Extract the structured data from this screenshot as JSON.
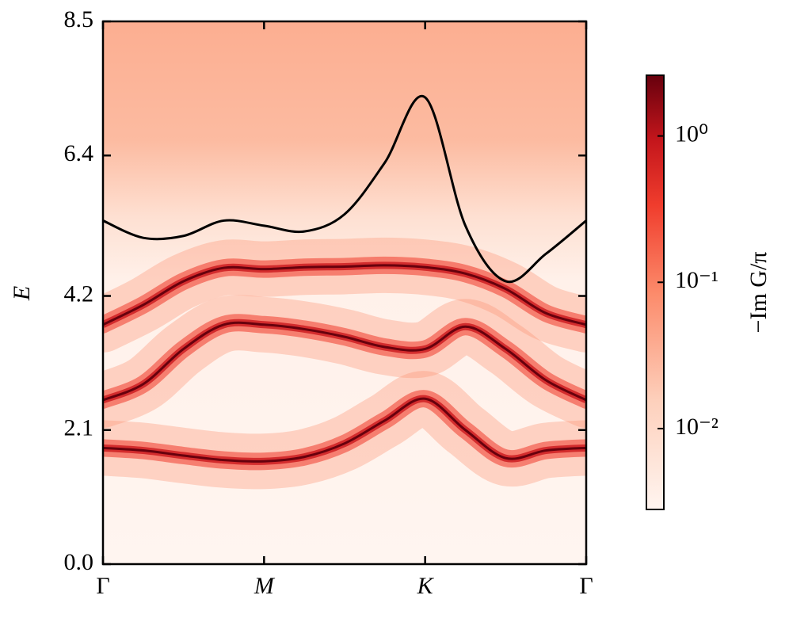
{
  "chart_data": {
    "type": "line",
    "y_label": "E",
    "x": [
      0,
      0.25,
      0.5,
      0.75,
      1,
      1.25,
      1.5,
      1.75,
      2,
      2.25,
      2.5,
      2.75,
      3
    ],
    "series": [
      {
        "color": "#67000d",
        "values": [
          1.82,
          1.78,
          1.7,
          1.63,
          1.61,
          1.68,
          1.89,
          2.25,
          2.59,
          2.1,
          1.66,
          1.78,
          1.82
        ]
      },
      {
        "color": "#67000d",
        "values": [
          2.57,
          2.82,
          3.37,
          3.75,
          3.75,
          3.68,
          3.56,
          3.4,
          3.37,
          3.72,
          3.37,
          2.88,
          2.57
        ]
      },
      {
        "color": "#67000d",
        "values": [
          3.75,
          4.06,
          4.43,
          4.64,
          4.62,
          4.65,
          4.66,
          4.68,
          4.65,
          4.55,
          4.31,
          3.93,
          3.75
        ]
      },
      {
        "color": "#000000",
        "values": [
          5.38,
          5.11,
          5.14,
          5.38,
          5.3,
          5.21,
          5.48,
          6.29,
          7.31,
          5.3,
          4.43,
          4.86,
          5.38
        ]
      }
    ],
    "xlim": [
      0,
      3
    ],
    "xticks": [
      {
        "value": 0,
        "label": "Γ"
      },
      {
        "value": 1,
        "label": "M"
      },
      {
        "value": 2,
        "label": "K"
      },
      {
        "value": 3,
        "label": "Γ"
      }
    ],
    "ylim": [
      0,
      8.5
    ],
    "yticks": [
      {
        "value": 0,
        "label": "0.0"
      },
      2.1,
      4.2,
      6.4,
      8.5
    ],
    "colorbar": {
      "label": "−Im G/π",
      "scale": "log",
      "lim": [
        0.0028,
        2.6
      ],
      "ticks": [
        {
          "value": 1,
          "label": "10⁰"
        },
        {
          "value": 0.1,
          "label": "10⁻¹"
        },
        {
          "value": 0.01,
          "label": "10⁻²"
        }
      ]
    }
  }
}
